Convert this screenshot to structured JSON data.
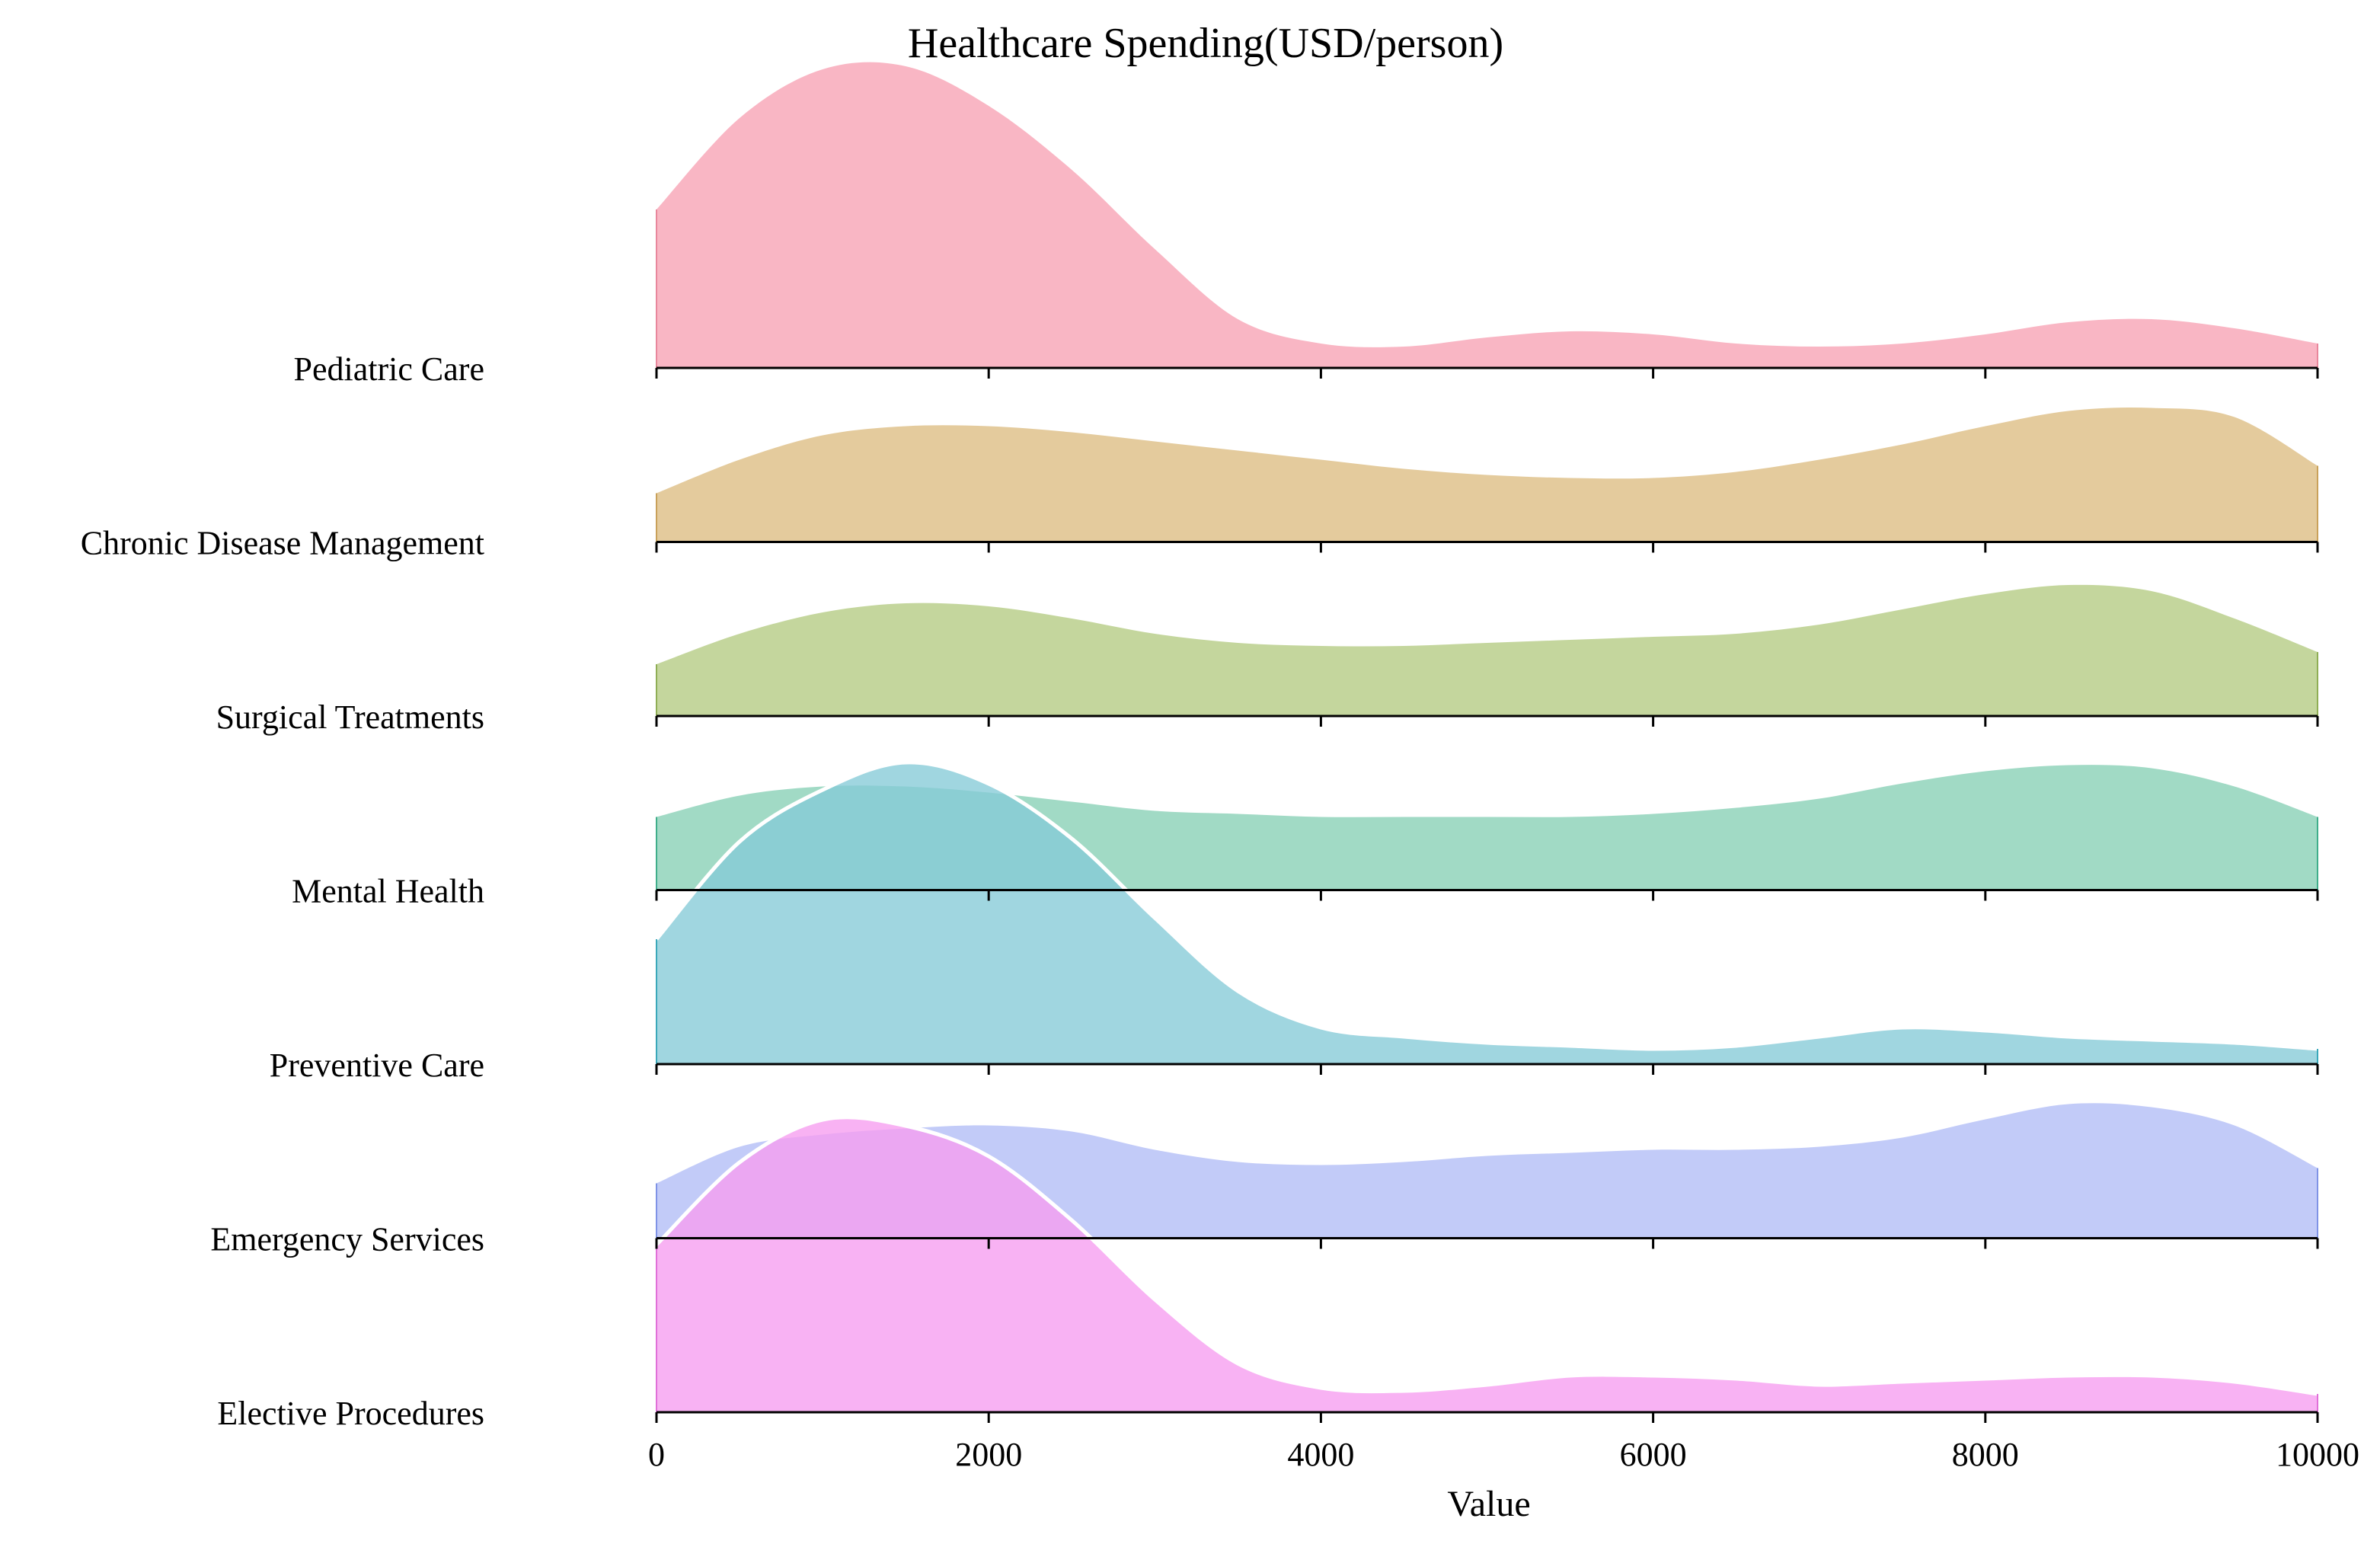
{
  "chart_data": {
    "type": "ridgeline",
    "title": "Healthcare Spending(USD/person)",
    "xlabel": "Value",
    "ylabel": "",
    "xlim": [
      0,
      10000
    ],
    "x_ticks": [
      0,
      2000,
      4000,
      6000,
      8000,
      10000
    ],
    "x_tick_labels": [
      "0",
      "2000",
      "4000",
      "6000",
      "8000",
      "10000"
    ],
    "grid": false,
    "legend": "none",
    "density_x": [
      0,
      500,
      1000,
      1500,
      2000,
      2500,
      3000,
      3500,
      4000,
      4500,
      5000,
      5500,
      6000,
      6500,
      7000,
      7500,
      8000,
      8500,
      9000,
      9500,
      10000
    ],
    "series": [
      {
        "name": "Pediatric Care",
        "color": "#f7a1b3",
        "edge_color": "#e8879c",
        "values": [
          0.52,
          0.82,
          0.98,
          0.99,
          0.86,
          0.65,
          0.39,
          0.16,
          0.08,
          0.07,
          0.1,
          0.12,
          0.11,
          0.08,
          0.07,
          0.08,
          0.11,
          0.15,
          0.16,
          0.13,
          0.08
        ]
      },
      {
        "name": "Chronic Disease Management",
        "color": "#dcbd82",
        "edge_color": "#c9a15a",
        "values": [
          0.16,
          0.27,
          0.35,
          0.38,
          0.38,
          0.36,
          0.33,
          0.3,
          0.27,
          0.24,
          0.22,
          0.21,
          0.21,
          0.23,
          0.27,
          0.32,
          0.38,
          0.43,
          0.44,
          0.41,
          0.25
        ]
      },
      {
        "name": "Surgical Treatments",
        "color": "#b3cb82",
        "edge_color": "#8fae55",
        "values": [
          0.17,
          0.27,
          0.34,
          0.37,
          0.36,
          0.32,
          0.27,
          0.24,
          0.23,
          0.23,
          0.24,
          0.25,
          0.26,
          0.27,
          0.3,
          0.35,
          0.4,
          0.43,
          0.41,
          0.32,
          0.21
        ]
      },
      {
        "name": "Mental Health",
        "color": "#86cfb5",
        "edge_color": "#3fae8a",
        "values": [
          0.24,
          0.31,
          0.34,
          0.34,
          0.32,
          0.29,
          0.26,
          0.25,
          0.24,
          0.24,
          0.24,
          0.24,
          0.25,
          0.27,
          0.3,
          0.35,
          0.39,
          0.41,
          0.4,
          0.34,
          0.24
        ]
      },
      {
        "name": "Preventive Care",
        "color": "#85cbd7",
        "edge_color": "#3aa8ba",
        "values": [
          0.41,
          0.73,
          0.9,
          0.99,
          0.92,
          0.74,
          0.48,
          0.24,
          0.12,
          0.09,
          0.07,
          0.06,
          0.05,
          0.06,
          0.09,
          0.12,
          0.11,
          0.09,
          0.08,
          0.07,
          0.05
        ]
      },
      {
        "name": "Emergency Services",
        "color": "#b1bdf6",
        "edge_color": "#7f93e6",
        "values": [
          0.18,
          0.3,
          0.34,
          0.36,
          0.37,
          0.35,
          0.29,
          0.25,
          0.24,
          0.25,
          0.27,
          0.28,
          0.29,
          0.29,
          0.3,
          0.33,
          0.39,
          0.44,
          0.43,
          0.37,
          0.23
        ]
      },
      {
        "name": "Elective Procedures",
        "color": "#f69cf0",
        "edge_color": "#e070d8",
        "values": [
          0.55,
          0.82,
          0.96,
          0.94,
          0.84,
          0.63,
          0.37,
          0.16,
          0.08,
          0.07,
          0.09,
          0.12,
          0.12,
          0.11,
          0.09,
          0.1,
          0.11,
          0.12,
          0.12,
          0.1,
          0.06
        ]
      }
    ],
    "highlighted_series": [
      "Preventive Care",
      "Elective Procedures"
    ]
  }
}
